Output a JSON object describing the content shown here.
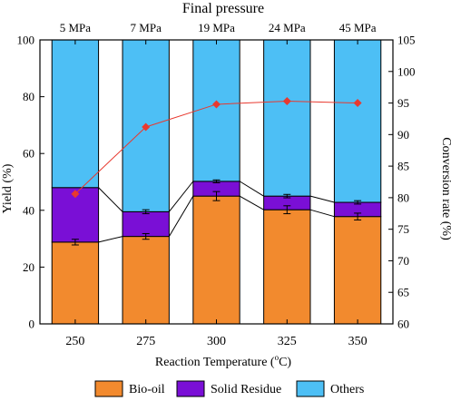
{
  "chart_data": {
    "type": "bar",
    "stacked": true,
    "top_axis_title": "Final pressure",
    "top_tick_labels": [
      "5 MPa",
      "7 MPa",
      "19 MPa",
      "24 MPa",
      "45 MPa"
    ],
    "categories": [
      "250",
      "275",
      "300",
      "325",
      "350"
    ],
    "xlabel": "Reaction Temperature (",
    "xlabel_sup": "o",
    "xlabel_end": "C)",
    "ylabel": "Yield (%)",
    "ylim": [
      0,
      100
    ],
    "yticks": [
      0,
      20,
      40,
      60,
      80,
      100
    ],
    "y2label": "Conversion rate (%)",
    "y2lim": [
      60,
      105
    ],
    "y2ticks": [
      60,
      65,
      70,
      75,
      80,
      85,
      90,
      95,
      100,
      105
    ],
    "series": [
      {
        "name": "Bio-oil",
        "color": "#F28A2E",
        "values": [
          28.8,
          30.8,
          45.0,
          40.2,
          37.8
        ],
        "errors": [
          1.0,
          1.0,
          1.6,
          1.4,
          1.2
        ]
      },
      {
        "name": "Solid Residue",
        "color": "#7A0FD6",
        "values": [
          19.2,
          8.7,
          5.2,
          4.8,
          5.0
        ],
        "errors": [
          0,
          0.7,
          0.5,
          0.6,
          0.6
        ]
      },
      {
        "name": "Others",
        "color": "#4DBFF5",
        "values": [
          52.0,
          60.5,
          49.8,
          55.0,
          57.2
        ]
      }
    ],
    "conversion_rate": {
      "color": "#E8392F",
      "values": [
        80.6,
        91.2,
        94.8,
        95.3,
        95.0
      ]
    },
    "grid": false,
    "legend_position": "bottom"
  }
}
